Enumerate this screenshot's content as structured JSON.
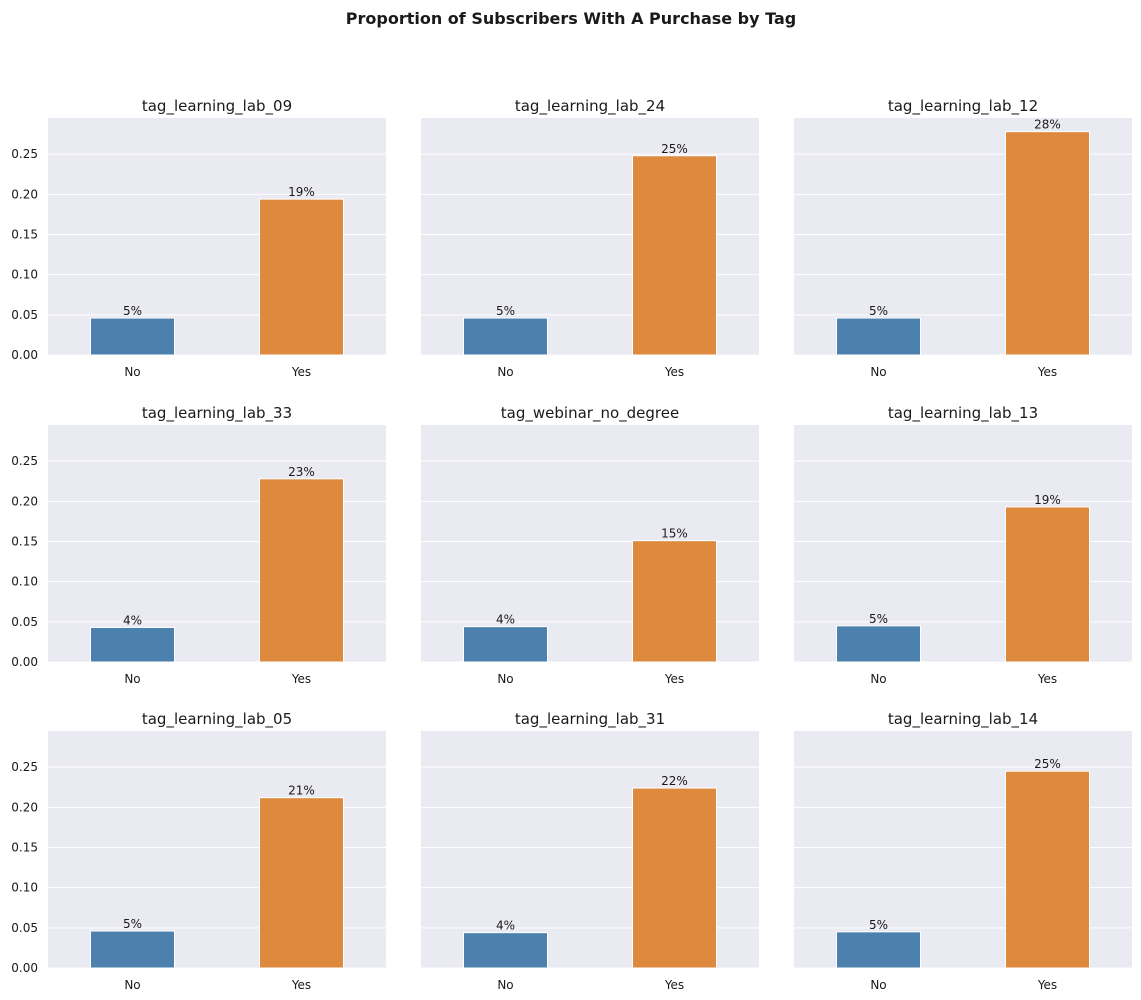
{
  "title": "Proportion of Subscribers With A Purchase by Tag",
  "colors": {
    "background": "#eaeaf2",
    "grid": "#ffffff",
    "no_bar": "#4c81ad",
    "yes_bar": "#de8a3e"
  },
  "chart_data": [
    {
      "type": "bar",
      "title": "tag_learning_lab_09",
      "categories": [
        "No",
        "Yes"
      ],
      "values": [
        0.046,
        0.194
      ],
      "labels": [
        "5%",
        "19%"
      ],
      "ylim": [
        0,
        0.295
      ],
      "yticks": [
        "0.00",
        "0.05",
        "0.10",
        "0.15",
        "0.20",
        "0.25"
      ],
      "grid": true
    },
    {
      "type": "bar",
      "title": "tag_learning_lab_24",
      "categories": [
        "No",
        "Yes"
      ],
      "values": [
        0.046,
        0.248
      ],
      "labels": [
        "5%",
        "25%"
      ],
      "ylim": [
        0,
        0.295
      ],
      "yticks": [
        "0.00",
        "0.05",
        "0.10",
        "0.15",
        "0.20",
        "0.25"
      ],
      "grid": true
    },
    {
      "type": "bar",
      "title": "tag_learning_lab_12",
      "categories": [
        "No",
        "Yes"
      ],
      "values": [
        0.046,
        0.278
      ],
      "labels": [
        "5%",
        "28%"
      ],
      "ylim": [
        0,
        0.295
      ],
      "yticks": [
        "0.00",
        "0.05",
        "0.10",
        "0.15",
        "0.20",
        "0.25"
      ],
      "grid": true
    },
    {
      "type": "bar",
      "title": "tag_learning_lab_33",
      "categories": [
        "No",
        "Yes"
      ],
      "values": [
        0.043,
        0.228
      ],
      "labels": [
        "4%",
        "23%"
      ],
      "ylim": [
        0,
        0.295
      ],
      "yticks": [
        "0.00",
        "0.05",
        "0.10",
        "0.15",
        "0.20",
        "0.25"
      ],
      "grid": true
    },
    {
      "type": "bar",
      "title": "tag_webinar_no_degree",
      "categories": [
        "No",
        "Yes"
      ],
      "values": [
        0.044,
        0.151
      ],
      "labels": [
        "4%",
        "15%"
      ],
      "ylim": [
        0,
        0.295
      ],
      "yticks": [
        "0.00",
        "0.05",
        "0.10",
        "0.15",
        "0.20",
        "0.25"
      ],
      "grid": true
    },
    {
      "type": "bar",
      "title": "tag_learning_lab_13",
      "categories": [
        "No",
        "Yes"
      ],
      "values": [
        0.045,
        0.193
      ],
      "labels": [
        "5%",
        "19%"
      ],
      "ylim": [
        0,
        0.295
      ],
      "yticks": [
        "0.00",
        "0.05",
        "0.10",
        "0.15",
        "0.20",
        "0.25"
      ],
      "grid": true
    },
    {
      "type": "bar",
      "title": "tag_learning_lab_05",
      "categories": [
        "No",
        "Yes"
      ],
      "values": [
        0.046,
        0.212
      ],
      "labels": [
        "5%",
        "21%"
      ],
      "ylim": [
        0,
        0.295
      ],
      "yticks": [
        "0.00",
        "0.05",
        "0.10",
        "0.15",
        "0.20",
        "0.25"
      ],
      "grid": true
    },
    {
      "type": "bar",
      "title": "tag_learning_lab_31",
      "categories": [
        "No",
        "Yes"
      ],
      "values": [
        0.044,
        0.224
      ],
      "labels": [
        "4%",
        "22%"
      ],
      "ylim": [
        0,
        0.295
      ],
      "yticks": [
        "0.00",
        "0.05",
        "0.10",
        "0.15",
        "0.20",
        "0.25"
      ],
      "grid": true
    },
    {
      "type": "bar",
      "title": "tag_learning_lab_14",
      "categories": [
        "No",
        "Yes"
      ],
      "values": [
        0.045,
        0.245
      ],
      "labels": [
        "5%",
        "25%"
      ],
      "ylim": [
        0,
        0.295
      ],
      "yticks": [
        "0.00",
        "0.05",
        "0.10",
        "0.15",
        "0.20",
        "0.25"
      ],
      "grid": true
    }
  ]
}
